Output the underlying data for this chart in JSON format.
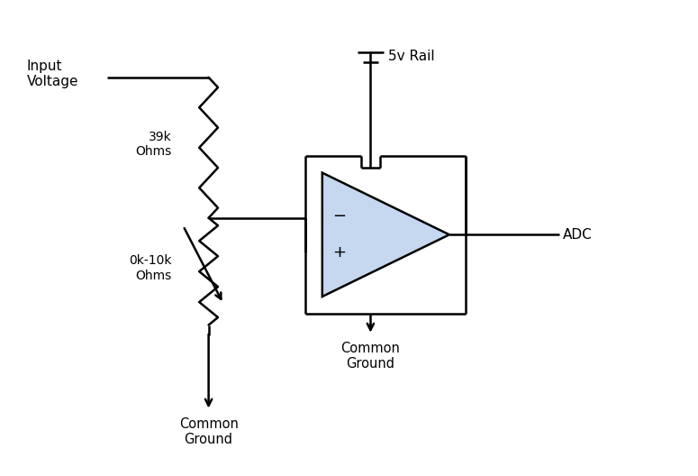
{
  "bg_color": "#ffffff",
  "line_color": "#000000",
  "op_amp_fill": "#c5d8f0",
  "text_color": "#000000",
  "figsize": [
    7.75,
    5.28
  ],
  "dpi": 100,
  "labels": {
    "input_voltage": "Input\nVoltage",
    "resistor1": "39k\nOhms",
    "resistor2": "0k-10k\nOhms",
    "v_rail": "5v Rail",
    "adc": "ADC",
    "common_ground1": "Common\nGround",
    "common_ground2": "Common\nGround"
  },
  "lw": 1.8
}
